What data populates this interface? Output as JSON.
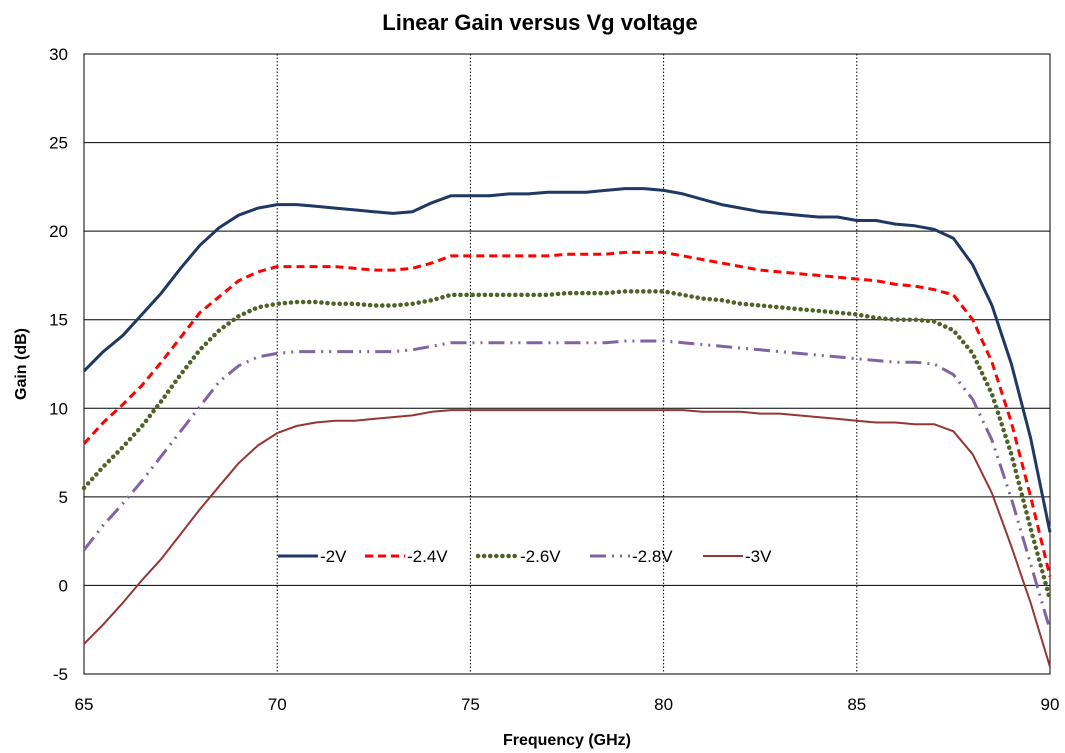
{
  "chart_data": {
    "type": "line",
    "title": "Linear Gain versus Vg voltage",
    "xlabel": "Frequency (GHz)",
    "ylabel": "Gain (dB)",
    "xlim": [
      65,
      90
    ],
    "ylim": [
      -5,
      30
    ],
    "xticks": [
      65,
      70,
      75,
      80,
      85,
      90
    ],
    "yticks": [
      -5,
      0,
      5,
      10,
      15,
      20,
      25,
      30
    ],
    "xtick_labels": [
      "65",
      "70",
      "75",
      "80",
      "85",
      "90"
    ],
    "ytick_labels": [
      "-5",
      "0",
      "5",
      "10",
      "15",
      "20",
      "25",
      "30"
    ],
    "grid": "horizontal solid, vertical dotted",
    "legend_position": "inside, lower-middle",
    "x": [
      65,
      65.5,
      66,
      66.5,
      67,
      67.5,
      68,
      68.5,
      69,
      69.5,
      70,
      70.5,
      71,
      71.5,
      72,
      72.5,
      73,
      73.5,
      74,
      74.5,
      75,
      75.5,
      76,
      76.5,
      77,
      77.5,
      78,
      78.5,
      79,
      79.5,
      80,
      80.5,
      81,
      81.5,
      82,
      82.5,
      83,
      83.5,
      84,
      84.5,
      85,
      85.5,
      86,
      86.5,
      87,
      87.5,
      88,
      88.5,
      89,
      89.5,
      90
    ],
    "series": [
      {
        "name": "-2V",
        "color": "#1f3864",
        "dash": "solid",
        "values": [
          12.1,
          13.2,
          14.1,
          15.3,
          16.5,
          17.9,
          19.2,
          20.2,
          20.9,
          21.3,
          21.5,
          21.5,
          21.4,
          21.3,
          21.2,
          21.1,
          21.0,
          21.1,
          21.6,
          22.0,
          22.0,
          22.0,
          22.1,
          22.1,
          22.2,
          22.2,
          22.2,
          22.3,
          22.4,
          22.4,
          22.3,
          22.1,
          21.8,
          21.5,
          21.3,
          21.1,
          21.0,
          20.9,
          20.8,
          20.8,
          20.6,
          20.6,
          20.4,
          20.3,
          20.1,
          19.6,
          18.1,
          15.8,
          12.5,
          8.3,
          3.0
        ]
      },
      {
        "name": "-2.4V",
        "color": "#ff0000",
        "dash": "dash",
        "values": [
          8.0,
          9.2,
          10.2,
          11.3,
          12.6,
          14.0,
          15.4,
          16.3,
          17.2,
          17.7,
          18.0,
          18.0,
          18.0,
          18.0,
          17.9,
          17.8,
          17.8,
          17.9,
          18.2,
          18.6,
          18.6,
          18.6,
          18.6,
          18.6,
          18.6,
          18.7,
          18.7,
          18.7,
          18.8,
          18.8,
          18.8,
          18.6,
          18.4,
          18.2,
          18.0,
          17.8,
          17.7,
          17.6,
          17.5,
          17.4,
          17.3,
          17.2,
          17.0,
          16.9,
          16.7,
          16.4,
          15.0,
          12.6,
          9.2,
          5.0,
          0.5
        ]
      },
      {
        "name": "-2.6V",
        "color": "#4f6228",
        "dash": "dot",
        "values": [
          5.5,
          6.7,
          7.8,
          9.0,
          10.4,
          11.9,
          13.3,
          14.4,
          15.2,
          15.7,
          15.9,
          16.0,
          16.0,
          15.9,
          15.9,
          15.8,
          15.8,
          15.9,
          16.1,
          16.4,
          16.4,
          16.4,
          16.4,
          16.4,
          16.4,
          16.5,
          16.5,
          16.5,
          16.6,
          16.6,
          16.6,
          16.4,
          16.2,
          16.1,
          15.9,
          15.8,
          15.7,
          15.6,
          15.5,
          15.4,
          15.3,
          15.1,
          15.0,
          15.0,
          14.9,
          14.4,
          13.1,
          10.8,
          7.4,
          3.2,
          -0.8
        ]
      },
      {
        "name": "-2.8V",
        "color": "#8064a2",
        "dash": "dashdotdot",
        "values": [
          2.0,
          3.4,
          4.6,
          5.9,
          7.3,
          8.7,
          10.1,
          11.5,
          12.4,
          12.9,
          13.1,
          13.2,
          13.2,
          13.2,
          13.2,
          13.2,
          13.2,
          13.3,
          13.5,
          13.7,
          13.7,
          13.7,
          13.7,
          13.7,
          13.7,
          13.7,
          13.7,
          13.7,
          13.8,
          13.8,
          13.8,
          13.7,
          13.6,
          13.5,
          13.4,
          13.3,
          13.2,
          13.1,
          13.0,
          12.9,
          12.8,
          12.7,
          12.6,
          12.6,
          12.5,
          11.9,
          10.5,
          8.2,
          4.9,
          1.2,
          -2.5
        ]
      },
      {
        "name": "-3V",
        "color": "#953735",
        "dash": "solid",
        "values": [
          -3.3,
          -2.2,
          -1.0,
          0.3,
          1.5,
          2.9,
          4.3,
          5.6,
          6.9,
          7.9,
          8.6,
          9.0,
          9.2,
          9.3,
          9.3,
          9.4,
          9.5,
          9.6,
          9.8,
          9.9,
          9.9,
          9.9,
          9.9,
          9.9,
          9.9,
          9.9,
          9.9,
          9.9,
          9.9,
          9.9,
          9.9,
          9.9,
          9.8,
          9.8,
          9.8,
          9.7,
          9.7,
          9.6,
          9.5,
          9.4,
          9.3,
          9.2,
          9.2,
          9.1,
          9.1,
          8.7,
          7.4,
          5.2,
          2.2,
          -1.0,
          -4.6
        ]
      }
    ]
  }
}
